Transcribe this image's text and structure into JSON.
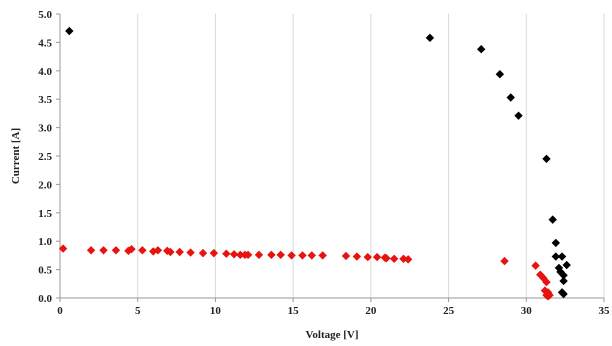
{
  "chart_data": {
    "type": "scatter",
    "xlabel": "Voltage [V]",
    "ylabel": "Current [A]",
    "xlim": [
      0,
      35
    ],
    "ylim": [
      0,
      5
    ],
    "xticks": [
      0,
      5,
      10,
      15,
      20,
      25,
      30,
      35
    ],
    "yticks": [
      0,
      0.5,
      1.0,
      1.5,
      2.0,
      2.5,
      3.0,
      3.5,
      4.0,
      4.5,
      5.0
    ],
    "ytick_labels": [
      "0.0",
      "0.5",
      "1.0",
      "1.5",
      "2.0",
      "2.5",
      "3.0",
      "3.5",
      "4.0",
      "4.5",
      "5.0"
    ],
    "grid": "vertical",
    "series": [
      {
        "color": "#000000",
        "marker": "diamond",
        "points": [
          [
            0.6,
            4.7
          ],
          [
            23.8,
            4.58
          ],
          [
            27.1,
            4.38
          ],
          [
            28.3,
            3.94
          ],
          [
            29.0,
            3.53
          ],
          [
            29.5,
            3.21
          ],
          [
            31.3,
            2.45
          ],
          [
            31.7,
            1.38
          ],
          [
            31.9,
            0.97
          ],
          [
            31.9,
            0.73
          ],
          [
            32.3,
            0.73
          ],
          [
            32.6,
            0.58
          ],
          [
            32.1,
            0.53
          ],
          [
            32.2,
            0.46
          ],
          [
            32.4,
            0.4
          ],
          [
            32.4,
            0.3
          ],
          [
            32.3,
            0.1
          ],
          [
            32.4,
            0.07
          ]
        ]
      },
      {
        "color": "#e8120f",
        "marker": "diamond",
        "points": [
          [
            0.2,
            0.87
          ],
          [
            2.0,
            0.84
          ],
          [
            2.8,
            0.84
          ],
          [
            3.6,
            0.84
          ],
          [
            4.4,
            0.83
          ],
          [
            4.6,
            0.86
          ],
          [
            5.3,
            0.84
          ],
          [
            6.0,
            0.82
          ],
          [
            6.3,
            0.84
          ],
          [
            6.9,
            0.83
          ],
          [
            7.1,
            0.81
          ],
          [
            7.7,
            0.81
          ],
          [
            8.4,
            0.8
          ],
          [
            9.2,
            0.79
          ],
          [
            9.9,
            0.79
          ],
          [
            10.7,
            0.78
          ],
          [
            11.2,
            0.77
          ],
          [
            11.6,
            0.76
          ],
          [
            11.9,
            0.76
          ],
          [
            12.1,
            0.76
          ],
          [
            12.8,
            0.76
          ],
          [
            13.6,
            0.76
          ],
          [
            14.2,
            0.76
          ],
          [
            14.9,
            0.75
          ],
          [
            15.6,
            0.75
          ],
          [
            16.2,
            0.75
          ],
          [
            16.9,
            0.75
          ],
          [
            18.4,
            0.74
          ],
          [
            19.1,
            0.73
          ],
          [
            19.8,
            0.72
          ],
          [
            20.4,
            0.72
          ],
          [
            20.9,
            0.71
          ],
          [
            21.0,
            0.7
          ],
          [
            21.5,
            0.69
          ],
          [
            22.1,
            0.69
          ],
          [
            22.4,
            0.68
          ],
          [
            28.6,
            0.65
          ],
          [
            30.6,
            0.57
          ],
          [
            30.9,
            0.41
          ],
          [
            31.1,
            0.35
          ],
          [
            31.3,
            0.28
          ],
          [
            31.2,
            0.13
          ],
          [
            31.4,
            0.1
          ],
          [
            31.3,
            0.05
          ],
          [
            31.5,
            0.05
          ],
          [
            31.4,
            0.03
          ]
        ]
      }
    ]
  }
}
